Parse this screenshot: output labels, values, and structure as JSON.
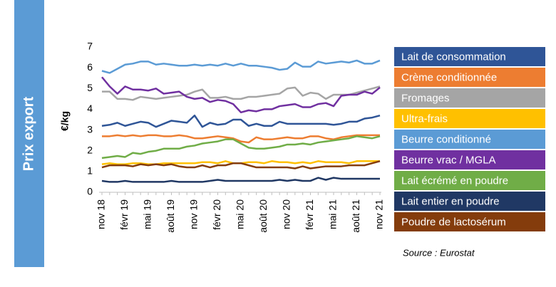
{
  "chart_data": {
    "type": "line",
    "title": "Prix export",
    "y_label": "€/kg",
    "source": "Source : Eurostat",
    "categories": [
      "nov 18",
      null,
      null,
      "févr 19",
      null,
      null,
      "mai 19",
      null,
      null,
      "août 19",
      null,
      null,
      "nov 19",
      null,
      null,
      "févr 20",
      null,
      null,
      "mai 20",
      null,
      null,
      "août 20",
      null,
      null,
      "nov 20",
      null,
      null,
      "févr 21",
      null,
      null,
      "mai 21",
      null,
      null,
      "août 21",
      null,
      null,
      "nov 21"
    ],
    "ylim": [
      0,
      7
    ],
    "yticks": [
      0,
      1,
      2,
      3,
      4,
      5,
      6,
      7
    ],
    "grid": false,
    "legend": "right",
    "series": [
      {
        "name": "Lait de consommation",
        "color": "#2f5597",
        "values": [
          3.2,
          3.25,
          3.35,
          3.2,
          3.3,
          3.4,
          3.35,
          3.15,
          3.3,
          3.45,
          3.4,
          3.35,
          3.7,
          3.15,
          3.35,
          3.25,
          3.3,
          3.5,
          3.5,
          3.2,
          3.3,
          3.2,
          3.2,
          3.4,
          3.3,
          3.3,
          3.3,
          3.3,
          3.3,
          3.3,
          3.25,
          3.3,
          3.4,
          3.4,
          3.55,
          3.6,
          3.7
        ]
      },
      {
        "name": "Crème conditionnée",
        "color": "#ed7d31",
        "values": [
          2.7,
          2.7,
          2.75,
          2.7,
          2.75,
          2.7,
          2.75,
          2.75,
          2.7,
          2.7,
          2.75,
          2.7,
          2.6,
          2.6,
          2.65,
          2.7,
          2.65,
          2.6,
          2.45,
          2.4,
          2.65,
          2.55,
          2.55,
          2.6,
          2.65,
          2.6,
          2.6,
          2.7,
          2.7,
          2.6,
          2.55,
          2.65,
          2.7,
          2.75,
          2.75,
          2.75,
          2.75
        ]
      },
      {
        "name": "Fromages",
        "color": "#a5a5a5",
        "values": [
          4.85,
          4.85,
          4.5,
          4.5,
          4.45,
          4.6,
          4.55,
          4.5,
          4.55,
          4.6,
          4.65,
          4.7,
          4.85,
          4.95,
          4.55,
          4.55,
          4.6,
          4.5,
          4.5,
          4.6,
          4.6,
          4.65,
          4.7,
          4.75,
          5.0,
          5.05,
          4.65,
          4.8,
          4.75,
          4.5,
          4.7,
          4.7,
          4.7,
          4.8,
          4.9,
          5.0,
          5.1
        ]
      },
      {
        "name": "Ultra-frais",
        "color": "#ffc000",
        "values": [
          1.35,
          1.4,
          1.35,
          1.35,
          1.4,
          1.4,
          1.35,
          1.35,
          1.4,
          1.4,
          1.4,
          1.4,
          1.4,
          1.45,
          1.45,
          1.4,
          1.5,
          1.4,
          1.4,
          1.45,
          1.45,
          1.4,
          1.5,
          1.45,
          1.45,
          1.4,
          1.45,
          1.4,
          1.5,
          1.45,
          1.45,
          1.45,
          1.4,
          1.5,
          1.5,
          1.5,
          1.5
        ]
      },
      {
        "name": "Beurre conditionné",
        "color": "#5b9bd5",
        "values": [
          5.85,
          5.75,
          5.95,
          6.15,
          6.2,
          6.3,
          6.3,
          6.15,
          6.2,
          6.15,
          6.1,
          6.1,
          6.15,
          6.1,
          6.15,
          6.1,
          6.2,
          6.1,
          6.2,
          6.1,
          6.1,
          6.05,
          6.0,
          5.9,
          5.95,
          6.25,
          6.05,
          6.05,
          6.3,
          6.2,
          6.25,
          6.3,
          6.25,
          6.35,
          6.2,
          6.2,
          6.35
        ]
      },
      {
        "name": "Beurre vrac / MGLA",
        "color": "#7030a0",
        "values": [
          5.55,
          5.1,
          4.75,
          5.1,
          4.95,
          4.95,
          4.9,
          5.0,
          4.75,
          4.8,
          4.85,
          4.6,
          4.5,
          4.55,
          4.35,
          4.45,
          4.4,
          4.25,
          3.85,
          3.95,
          3.9,
          4.0,
          4.0,
          4.15,
          4.2,
          4.25,
          4.1,
          4.1,
          4.25,
          4.3,
          4.15,
          4.65,
          4.7,
          4.7,
          4.85,
          4.75,
          5.05
        ]
      },
      {
        "name": "Lait écrémé en poudre",
        "color": "#70ad47",
        "values": [
          1.65,
          1.7,
          1.75,
          1.7,
          1.9,
          1.85,
          1.95,
          2.0,
          2.1,
          2.1,
          2.1,
          2.2,
          2.25,
          2.35,
          2.4,
          2.45,
          2.55,
          2.55,
          2.35,
          2.15,
          2.1,
          2.1,
          2.15,
          2.2,
          2.3,
          2.3,
          2.35,
          2.3,
          2.4,
          2.45,
          2.5,
          2.55,
          2.6,
          2.7,
          2.65,
          2.6,
          2.7
        ]
      },
      {
        "name": "Lait entier en poudre",
        "color": "#203864",
        "values": [
          0.55,
          0.5,
          0.5,
          0.55,
          0.5,
          0.5,
          0.5,
          0.5,
          0.5,
          0.55,
          0.5,
          0.5,
          0.5,
          0.5,
          0.55,
          0.6,
          0.55,
          0.55,
          0.55,
          0.55,
          0.55,
          0.55,
          0.55,
          0.6,
          0.55,
          0.6,
          0.55,
          0.55,
          0.7,
          0.6,
          0.7,
          0.65,
          0.65,
          0.65,
          0.65,
          0.65,
          0.65
        ]
      },
      {
        "name": "Poudre de lactosérum",
        "color": "#843c0c",
        "values": [
          1.2,
          1.3,
          1.3,
          1.3,
          1.25,
          1.35,
          1.3,
          1.35,
          1.3,
          1.35,
          1.25,
          1.2,
          1.2,
          1.3,
          1.2,
          1.3,
          1.3,
          1.4,
          1.4,
          1.3,
          1.2,
          1.2,
          1.2,
          1.2,
          1.2,
          1.15,
          1.25,
          1.15,
          1.2,
          1.25,
          1.25,
          1.25,
          1.3,
          1.3,
          1.3,
          1.4,
          1.5
        ]
      }
    ]
  }
}
